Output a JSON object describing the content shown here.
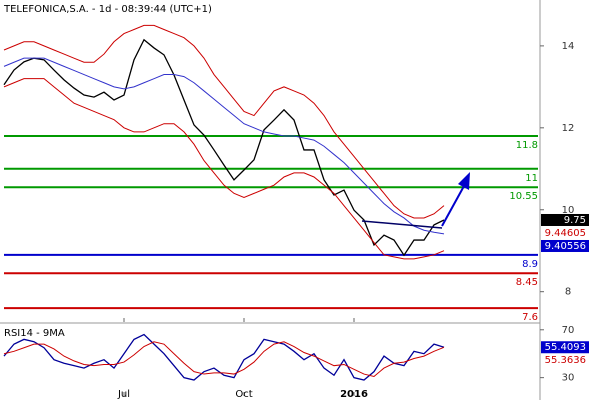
{
  "chart_data": [
    {
      "type": "price",
      "title": "TELEFONICA,S.A. - 1d - 08:39:44 (UTC+1)",
      "categories": [
        null,
        null,
        null,
        null,
        null,
        null,
        null,
        null,
        null,
        null,
        null,
        null,
        "Jul",
        null,
        null,
        null,
        null,
        null,
        null,
        null,
        null,
        null,
        null,
        null,
        "Oct",
        null,
        null,
        null,
        null,
        null,
        null,
        null,
        null,
        null,
        null,
        "2016",
        null,
        null,
        null,
        null,
        null,
        null,
        null,
        null,
        null
      ],
      "ylim": [
        7.26,
        15.12
      ],
      "yticks": [
        8,
        10,
        12,
        14
      ],
      "series": [
        {
          "name": "Close",
          "color": "#000000",
          "values": [
            13.05,
            13.41,
            13.61,
            13.7,
            13.66,
            13.41,
            13.17,
            12.97,
            12.8,
            12.75,
            12.87,
            12.68,
            12.8,
            13.66,
            14.15,
            13.95,
            13.78,
            13.29,
            12.68,
            12.07,
            11.82,
            11.46,
            11.09,
            10.73,
            10.97,
            11.22,
            11.95,
            12.19,
            12.44,
            12.19,
            11.46,
            11.46,
            10.73,
            10.36,
            10.48,
            9.99,
            9.75,
            9.14,
            9.38,
            9.26,
            8.89,
            9.26,
            9.26,
            9.63,
            9.75
          ]
        },
        {
          "name": "MA",
          "color": "#3333cc",
          "values": [
            13.5,
            13.6,
            13.7,
            13.7,
            13.7,
            13.6,
            13.5,
            13.4,
            13.3,
            13.2,
            13.1,
            13.0,
            12.95,
            13.0,
            13.1,
            13.2,
            13.3,
            13.3,
            13.25,
            13.1,
            12.9,
            12.7,
            12.5,
            12.3,
            12.1,
            12.0,
            11.9,
            11.85,
            11.8,
            11.8,
            11.75,
            11.7,
            11.55,
            11.35,
            11.15,
            10.9,
            10.65,
            10.4,
            10.15,
            9.95,
            9.8,
            9.6,
            9.5,
            9.45,
            9.41
          ]
        },
        {
          "name": "Upper",
          "color": "#cc0000",
          "values": [
            13.9,
            14.0,
            14.1,
            14.1,
            14.0,
            13.9,
            13.8,
            13.7,
            13.6,
            13.6,
            13.8,
            14.1,
            14.3,
            14.4,
            14.5,
            14.5,
            14.4,
            14.3,
            14.2,
            14.0,
            13.7,
            13.3,
            13.0,
            12.7,
            12.4,
            12.3,
            12.6,
            12.9,
            13.0,
            12.9,
            12.8,
            12.6,
            12.3,
            11.9,
            11.6,
            11.3,
            11.0,
            10.7,
            10.4,
            10.1,
            9.9,
            9.8,
            9.8,
            9.9,
            10.1
          ]
        },
        {
          "name": "Lower",
          "color": "#cc0000",
          "values": [
            13.0,
            13.1,
            13.2,
            13.2,
            13.2,
            13.0,
            12.8,
            12.6,
            12.5,
            12.4,
            12.3,
            12.2,
            12.0,
            11.9,
            11.9,
            12.0,
            12.1,
            12.1,
            11.9,
            11.6,
            11.2,
            10.9,
            10.6,
            10.4,
            10.3,
            10.4,
            10.5,
            10.6,
            10.8,
            10.9,
            10.9,
            10.8,
            10.6,
            10.4,
            10.1,
            9.8,
            9.5,
            9.2,
            8.9,
            8.85,
            8.8,
            8.8,
            8.85,
            8.9,
            9.0
          ]
        }
      ],
      "levels": [
        {
          "value": 11.8,
          "color": "#009900"
        },
        {
          "value": 11,
          "color": "#009900"
        },
        {
          "value": 10.55,
          "color": "#009900"
        },
        {
          "value": 8.9,
          "color": "#0000cc"
        },
        {
          "value": 8.45,
          "color": "#cc0000"
        },
        {
          "value": 7.6,
          "color": "#cc0000"
        }
      ],
      "markers": [
        {
          "value": 9.75,
          "color": "#000000"
        },
        {
          "value": 9.44605,
          "color": "#cc0000"
        },
        {
          "value": 9.40556,
          "color": "#0000cc"
        }
      ]
    },
    {
      "type": "rsi",
      "title": "RSI14 - 9MA",
      "categories": [
        null,
        null,
        null,
        null,
        null,
        null,
        null,
        null,
        null,
        null,
        null,
        null,
        "Jul",
        null,
        null,
        null,
        null,
        null,
        null,
        null,
        null,
        null,
        null,
        null,
        "Oct",
        null,
        null,
        null,
        null,
        null,
        null,
        null,
        null,
        null,
        null,
        "2016",
        null,
        null,
        null,
        null,
        null,
        null,
        null,
        null,
        null
      ],
      "ylim": [
        18,
        74
      ],
      "yticks": [
        30,
        70
      ],
      "series": [
        {
          "name": "RSI",
          "color": "#000099",
          "values": [
            48,
            58,
            62,
            60,
            55,
            45,
            42,
            40,
            38,
            42,
            45,
            38,
            50,
            62,
            66,
            58,
            50,
            40,
            30,
            28,
            35,
            38,
            32,
            30,
            45,
            50,
            62,
            60,
            58,
            52,
            45,
            50,
            38,
            32,
            45,
            30,
            28,
            35,
            48,
            42,
            40,
            52,
            50,
            58,
            55.41
          ]
        },
        {
          "name": "MA",
          "color": "#cc0000",
          "values": [
            50,
            52,
            55,
            58,
            58,
            54,
            48,
            44,
            41,
            40,
            41,
            41,
            43,
            49,
            56,
            60,
            58,
            50,
            42,
            35,
            33,
            34,
            34,
            33,
            37,
            43,
            52,
            58,
            60,
            56,
            51,
            48,
            44,
            40,
            41,
            37,
            33,
            31,
            38,
            42,
            43,
            46,
            48,
            52,
            55.36
          ]
        }
      ],
      "markers": [
        {
          "value": 55.4093,
          "color": "#0000cc"
        },
        {
          "value": 55.3636,
          "color": "#cc0000"
        }
      ]
    }
  ]
}
